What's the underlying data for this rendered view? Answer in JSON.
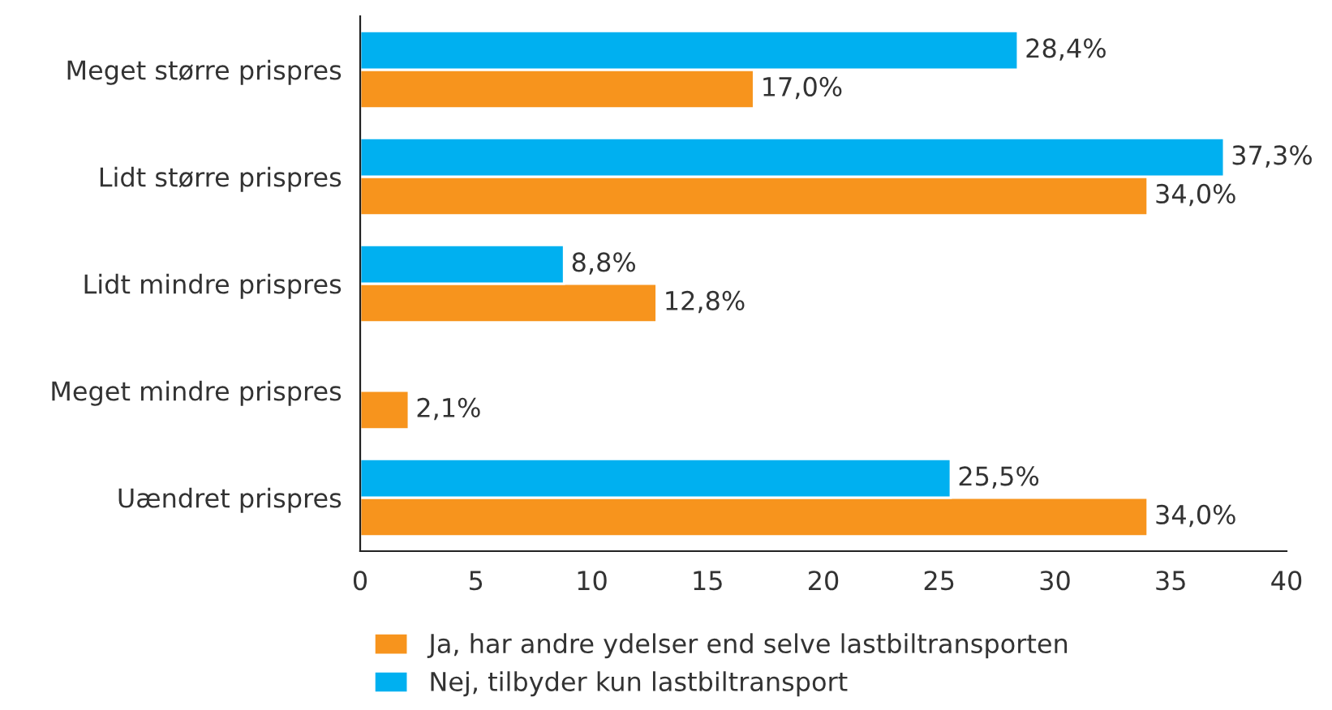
{
  "chart_data": {
    "type": "bar",
    "orientation": "horizontal",
    "categories": [
      "Meget større prispres",
      "Lidt større prispres",
      "Lidt mindre prispres",
      "Meget mindre prispres",
      "Uændret prispres"
    ],
    "series": [
      {
        "name": "Ja, har andre ydelser end selve lastbiltransporten",
        "color": "#f7941d",
        "values": [
          17.0,
          34.0,
          12.8,
          2.1,
          34.0
        ],
        "value_labels": [
          "17,0%",
          "34,0%",
          "12,8%",
          "2,1%",
          "34,0%"
        ]
      },
      {
        "name": "Nej, tilbyder kun lastbiltransport",
        "color": "#00b0f0",
        "values": [
          28.4,
          37.3,
          8.8,
          null,
          25.5
        ],
        "value_labels": [
          "28,4%",
          "37,3%",
          "8,8%",
          null,
          "25,5%"
        ]
      }
    ],
    "xlim": [
      0,
      40
    ],
    "xticks": [
      0,
      5,
      10,
      15,
      20,
      25,
      30,
      35,
      40
    ],
    "grid": false,
    "legend": "bottom"
  }
}
